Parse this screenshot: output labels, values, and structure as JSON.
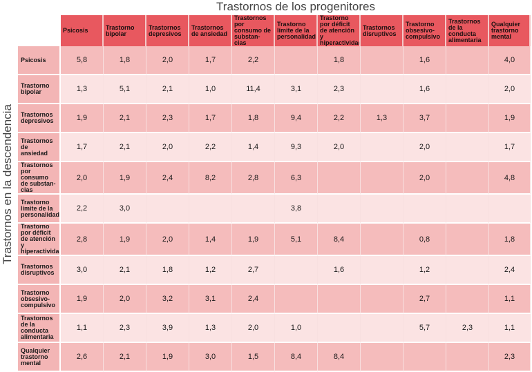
{
  "column_title": "Trastornos de los progenitores",
  "row_title": "Trastornos en la descendencia",
  "colors": {
    "header": "#e8585f",
    "row_label": "#f3b5b5",
    "band_dark": "#f5bcbc",
    "band_light": "#fbe3e3"
  },
  "chart_data": {
    "type": "table",
    "columns": [
      "Psicosis",
      "Trastorno bipolar",
      "Trastornos depresivos",
      "Trastornos de ansiedad",
      "Trastornos por consumo de substan-cias",
      "Trastorno límite de la personalidad",
      "Trastorno por déficit de atención y hiperactividad",
      "Trastornos disruptivos",
      "Trastorno obsesivo-compulsivo",
      "Trastornos de la conducta alimentaria",
      "Qualquier trastorno mental"
    ],
    "rows": [
      {
        "label": "Psicosis",
        "values": [
          "5,8",
          "1,8",
          "2,0",
          "1,7",
          "2,2",
          "",
          "1,8",
          "",
          "1,6",
          "",
          "4,0"
        ]
      },
      {
        "label": "Trastorno bipolar",
        "values": [
          "1,3",
          "5,1",
          "2,1",
          "1,0",
          "11,4",
          "3,1",
          "2,3",
          "",
          "1,6",
          "",
          "2,0"
        ]
      },
      {
        "label": "Trastornos depresivos",
        "values": [
          "1,9",
          "2,1",
          "2,3",
          "1,7",
          "1,8",
          "9,4",
          "2,2",
          "1,3",
          "3,7",
          "",
          "1,9"
        ]
      },
      {
        "label": "Trastornos de ansiedad",
        "values": [
          "1,7",
          "2,1",
          "2,0",
          "2,2",
          "1,4",
          "9,3",
          "2,0",
          "",
          "2,0",
          "",
          "1,7"
        ]
      },
      {
        "label": "Trastornos por consumo de substan-cias",
        "values": [
          "2,0",
          "1,9",
          "2,4",
          "8,2",
          "2,8",
          "6,3",
          "",
          "",
          "2,0",
          "",
          "4,8"
        ]
      },
      {
        "label": "Trastorno límite de la personalidad",
        "values": [
          "2,2",
          "3,0",
          "",
          "",
          "",
          "3,8",
          "",
          "",
          "",
          "",
          ""
        ]
      },
      {
        "label": "Trastorno por déficit de atención y hiperactividad",
        "values": [
          "2,8",
          "1,9",
          "2,0",
          "1,4",
          "1,9",
          "5,1",
          "8,4",
          "",
          "0,8",
          "",
          "1,8"
        ]
      },
      {
        "label": "Trastornos disruptivos",
        "values": [
          "3,0",
          "2,1",
          "1,8",
          "1,2",
          "2,7",
          "",
          "1,6",
          "",
          "1,2",
          "",
          "2,4"
        ]
      },
      {
        "label": "Trastorno obsesivo-compulsivo",
        "values": [
          "1,9",
          "2,0",
          "3,2",
          "3,1",
          "2,4",
          "",
          "",
          "",
          "2,7",
          "",
          "1,1"
        ]
      },
      {
        "label": "Trastornos de la conducta alimentaria",
        "values": [
          "1,1",
          "2,3",
          "3,9",
          "1,3",
          "2,0",
          "1,0",
          "",
          "",
          "5,7",
          "2,3",
          "1,1"
        ]
      },
      {
        "label": "Qualquier trastorno mental",
        "values": [
          "2,6",
          "2,1",
          "1,9",
          "3,0",
          "1,5",
          "8,4",
          "8,4",
          "",
          "",
          "",
          "2,3"
        ]
      }
    ]
  }
}
